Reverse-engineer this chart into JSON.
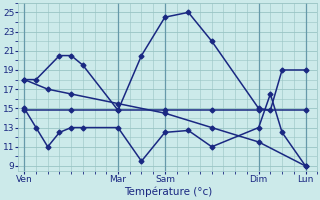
{
  "x_tick_positions": [
    0,
    8,
    12,
    20,
    24
  ],
  "x_tick_labels": [
    "Ven",
    "Mar",
    "Sam",
    "Dim",
    "Lun"
  ],
  "xlabel": "Température (°c)",
  "ylim": [
    8.5,
    26
  ],
  "yticks": [
    9,
    11,
    13,
    15,
    17,
    19,
    21,
    23,
    25
  ],
  "xlim": [
    -0.5,
    25
  ],
  "bg_color": "#cceaea",
  "line_color": "#1a2882",
  "grid_color": "#99c4c4",
  "line_color_dark": "#2233aa",
  "line1_x": [
    0,
    1,
    3,
    4,
    5,
    8,
    10,
    12,
    14,
    16,
    20,
    21,
    22,
    24
  ],
  "line1_y": [
    18.0,
    18.0,
    20.5,
    20.5,
    19.5,
    14.8,
    20.5,
    24.5,
    25.0,
    22.0,
    15.0,
    14.8,
    19.0,
    19.0
  ],
  "line2_x": [
    0,
    4,
    8,
    12,
    16,
    20,
    24
  ],
  "line2_y": [
    14.8,
    14.8,
    14.8,
    14.8,
    14.8,
    14.8,
    14.8
  ],
  "line3_x": [
    0,
    1,
    2,
    3,
    4,
    5,
    8,
    10,
    12,
    14,
    16,
    20,
    21,
    22,
    24
  ],
  "line3_y": [
    15.0,
    13.0,
    11.0,
    12.5,
    13.0,
    13.0,
    13.0,
    9.5,
    12.5,
    12.7,
    11.0,
    13.0,
    16.5,
    12.5,
    9.0
  ],
  "line4_x": [
    0,
    2,
    4,
    8,
    12,
    16,
    20,
    24
  ],
  "line4_y": [
    18.0,
    17.0,
    16.5,
    15.5,
    14.5,
    13.0,
    11.5,
    9.0
  ],
  "marker": "D",
  "markersize": 2.5,
  "linewidth": 1.1
}
